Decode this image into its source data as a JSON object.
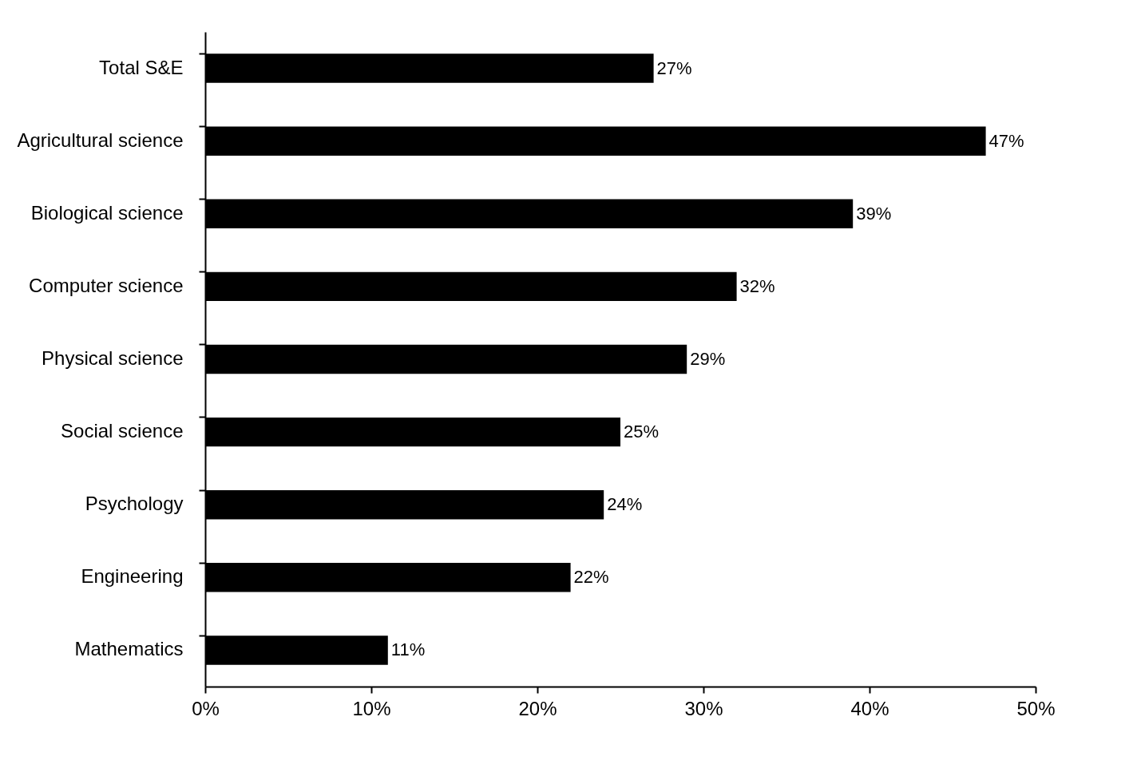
{
  "chart_data": {
    "type": "bar",
    "orientation": "horizontal",
    "categories": [
      "Total S&E",
      "Agricultural science",
      "Biological science",
      "Computer science",
      "Physical science",
      "Social science",
      "Psychology",
      "Engineering",
      "Mathematics"
    ],
    "values": [
      27,
      47,
      39,
      32,
      29,
      25,
      24,
      22,
      11
    ],
    "value_labels": [
      "27%",
      "47%",
      "39%",
      "32%",
      "29%",
      "25%",
      "24%",
      "22%",
      "11%"
    ],
    "color": "#000000",
    "xlim": [
      0,
      50
    ],
    "xticks": [
      {
        "value": 0,
        "label": "0%"
      },
      {
        "value": 10,
        "label": "10%"
      },
      {
        "value": 20,
        "label": "20%"
      },
      {
        "value": 30,
        "label": "30%"
      },
      {
        "value": 40,
        "label": "40%"
      },
      {
        "value": 50,
        "label": "50%"
      }
    ],
    "grid": false
  }
}
